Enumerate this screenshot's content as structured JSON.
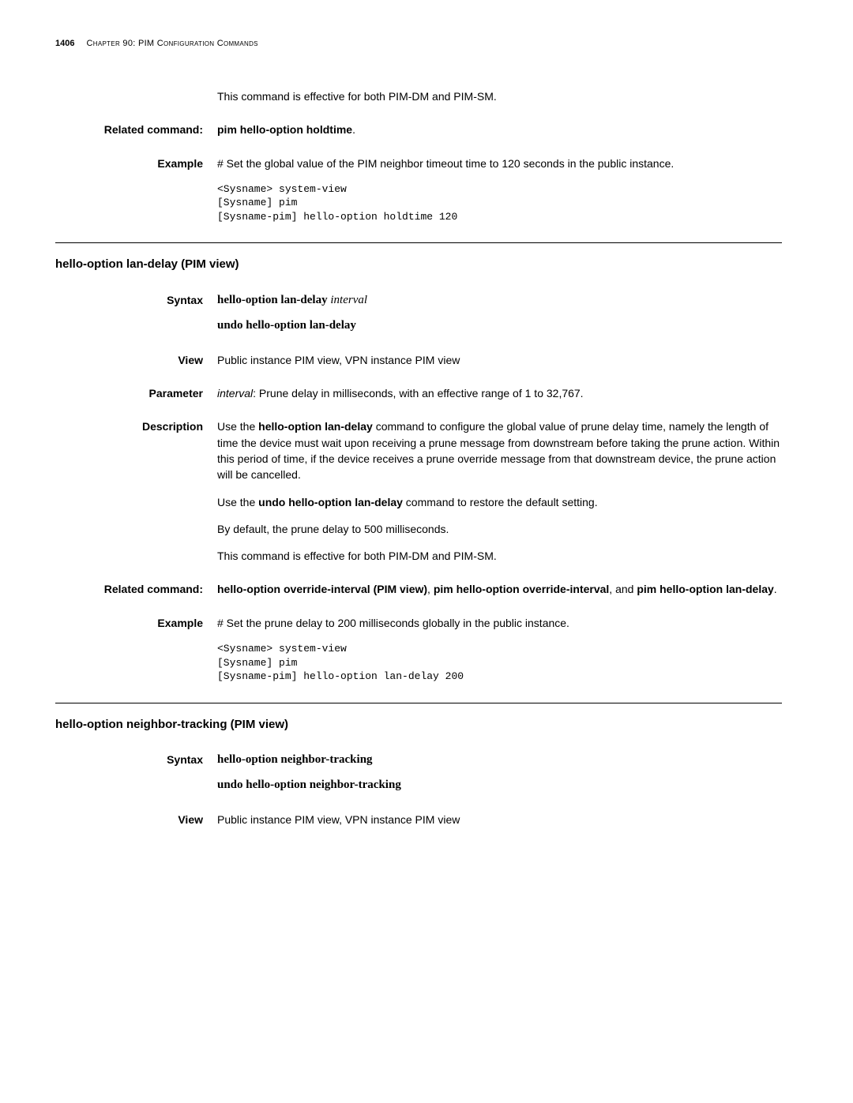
{
  "header": {
    "page_number": "1406",
    "chapter_label": "Chapter 90: PIM Configuration Commands"
  },
  "upper": {
    "effective_text": "This command is effective for both PIM-DM and PIM-SM.",
    "related_label": "Related command:",
    "related_text": "pim hello-option holdtime",
    "example_label": "Example",
    "example_text": "# Set the global value of the PIM neighbor timeout time to 120 seconds in the public instance.",
    "example_code": "<Sysname> system-view\n[Sysname] pim\n[Sysname-pim] hello-option holdtime 120"
  },
  "section1": {
    "title": "hello-option lan-delay (PIM view)",
    "syntax_label": "Syntax",
    "syntax_cmd": "hello-option lan-delay",
    "syntax_param": "interval",
    "syntax_undo": "undo hello-option lan-delay",
    "view_label": "View",
    "view_text": "Public instance PIM view, VPN instance PIM view",
    "parameter_label": "Parameter",
    "parameter_name": "interval",
    "parameter_text": ": Prune delay in milliseconds, with an effective range of 1 to 32,767.",
    "description_label": "Description",
    "desc_p1_a": "Use the ",
    "desc_p1_bold": "hello-option lan-delay",
    "desc_p1_b": " command to configure the global value of prune delay time, namely the length of time the device must wait upon receiving a prune message from downstream before taking the prune action. Within this period of time, if the device receives a prune override message from that downstream device, the prune action will be cancelled.",
    "desc_p2_a": "Use the ",
    "desc_p2_bold": "undo hello-option lan-delay",
    "desc_p2_b": " command to restore the default setting.",
    "desc_p3": "By default, the prune delay to 500 milliseconds.",
    "desc_p4": "This command is effective for both PIM-DM and PIM-SM.",
    "related_label": "Related command:",
    "related_b1": "hello-option override-interval (PIM view)",
    "related_t1": ", ",
    "related_b2": "pim hello-option override-interval",
    "related_t2": ", and ",
    "related_b3": "pim hello-option lan-delay",
    "related_t3": ".",
    "example_label": "Example",
    "example_text": "# Set the prune delay to 200 milliseconds globally in the public instance.",
    "example_code": "<Sysname> system-view\n[Sysname] pim\n[Sysname-pim] hello-option lan-delay 200"
  },
  "section2": {
    "title": "hello-option neighbor-tracking (PIM view)",
    "syntax_label": "Syntax",
    "syntax_cmd": "hello-option neighbor-tracking",
    "syntax_undo": "undo hello-option neighbor-tracking",
    "view_label": "View",
    "view_text": "Public instance PIM view, VPN instance PIM view"
  }
}
